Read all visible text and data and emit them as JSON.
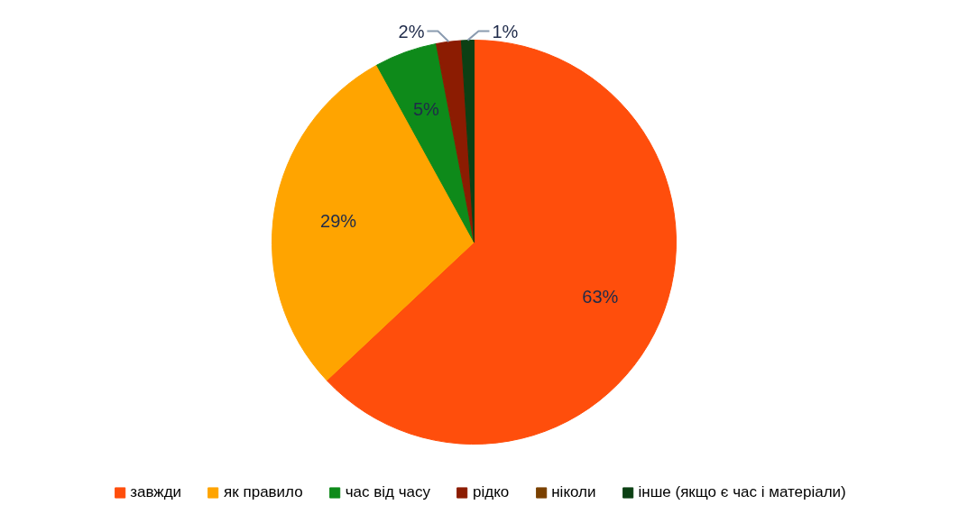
{
  "chart_data": {
    "type": "pie",
    "categories": [
      "завжди",
      "як правило",
      "час від часу",
      "рідко",
      "ніколи",
      "інше (якщо є час і матеріали)"
    ],
    "values": [
      63,
      29,
      5,
      2,
      0,
      1
    ],
    "colors": [
      "#ff4e0c",
      "#ffa400",
      "#0e8a1a",
      "#8c1c02",
      "#7a4000",
      "#0c4014"
    ],
    "value_labels": [
      "63%",
      "29%",
      "5%",
      "2%",
      null,
      "1%"
    ],
    "legend": "bottom"
  }
}
